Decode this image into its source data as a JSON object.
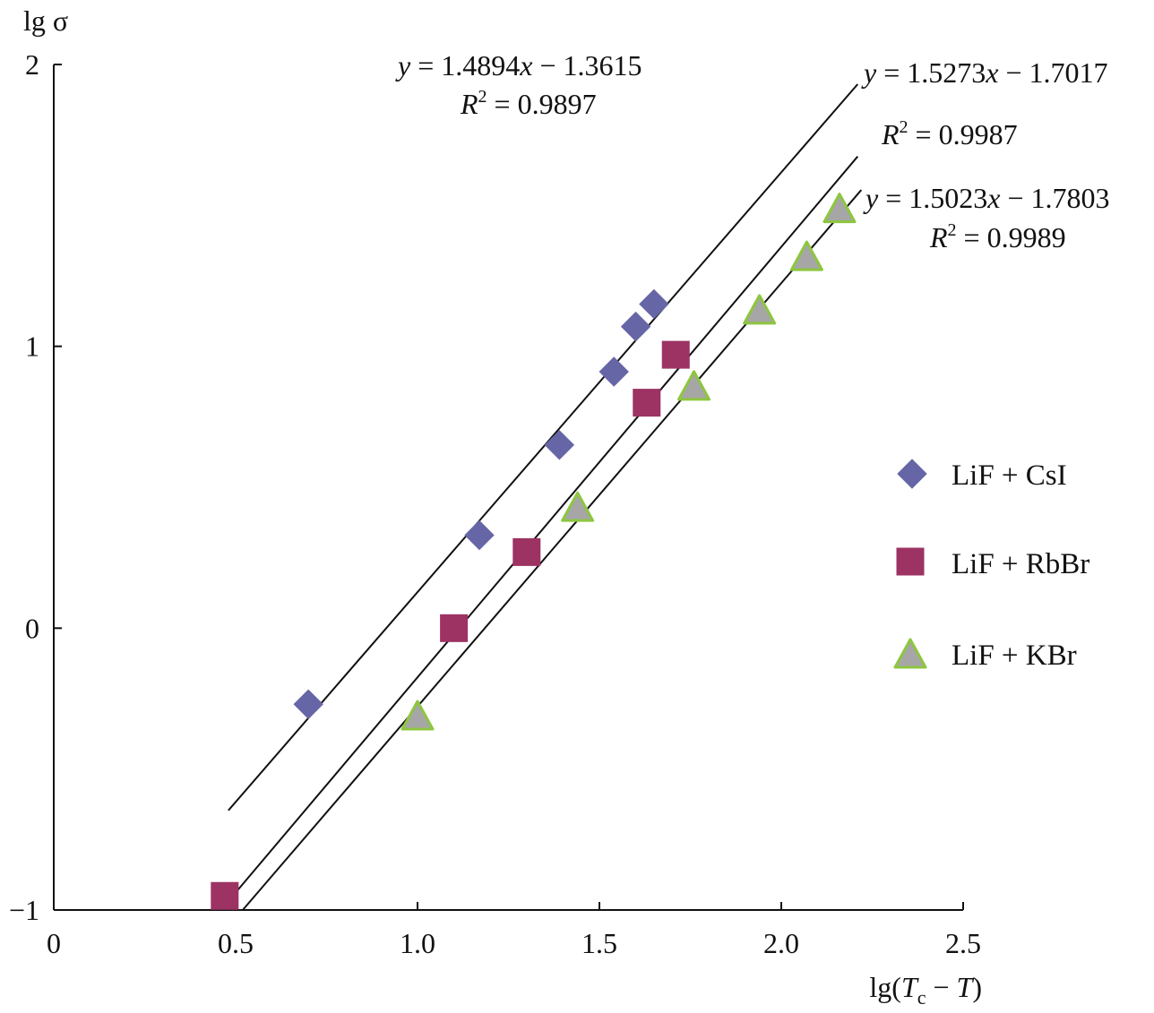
{
  "chart_data": {
    "type": "scatter",
    "xlabel": {
      "prefix": "lg(",
      "var1": "T",
      "sub1": "c",
      "mid": " − ",
      "var2": "T",
      "suffix": ")"
    },
    "ylabel": "lg σ",
    "xlim": [
      0,
      2.5
    ],
    "ylim": [
      -1,
      2
    ],
    "xticks": [
      {
        "value": 0,
        "label": "0"
      },
      {
        "value": 0.5,
        "label": "0.5"
      },
      {
        "value": 1.0,
        "label": "1.0"
      },
      {
        "value": 1.5,
        "label": "1.5"
      },
      {
        "value": 2.0,
        "label": "2.0"
      },
      {
        "value": 2.5,
        "label": "2.5"
      }
    ],
    "yticks": [
      {
        "value": -1,
        "label": "−1"
      },
      {
        "value": 0,
        "label": "0"
      },
      {
        "value": 1,
        "label": "1"
      },
      {
        "value": 2,
        "label": "2"
      }
    ],
    "legend_position": "right",
    "series": [
      {
        "name": "LiF + CsI",
        "marker": "diamond",
        "color": "#6666a6",
        "edge_color": "#6666a6",
        "points": [
          [
            0.7,
            -0.27
          ],
          [
            1.17,
            0.33
          ],
          [
            1.39,
            0.65
          ],
          [
            1.54,
            0.91
          ],
          [
            1.6,
            1.07
          ],
          [
            1.65,
            1.15
          ]
        ],
        "fit": {
          "slope": 1.4894,
          "intercept": -1.3615,
          "x_range": [
            0.48,
            2.21
          ]
        },
        "equation": {
          "lhs": "y",
          "rhs_a": " = 1.4894",
          "var": "x",
          "rhs_b": " − 1.3615",
          "r2_label": "R",
          "r2_sup": "2",
          "r2_value": " = 0.9897"
        }
      },
      {
        "name": "LiF + RbBr",
        "marker": "square",
        "color": "#9c3363",
        "edge_color": "#9c3363",
        "points": [
          [
            0.47,
            -0.95
          ],
          [
            1.1,
            0.0
          ],
          [
            1.3,
            0.27
          ],
          [
            1.63,
            0.8
          ],
          [
            1.71,
            0.97
          ]
        ],
        "fit": {
          "slope": 1.5273,
          "intercept": -1.7017,
          "x_range": [
            0.48,
            2.21
          ]
        },
        "equation": {
          "lhs": "y",
          "rhs_a": " = 1.5273",
          "var": "x",
          "rhs_b": " − 1.7017",
          "r2_label": "R",
          "r2_sup": "2",
          "r2_value": " = 0.9987"
        }
      },
      {
        "name": "LiF + KBr",
        "marker": "triangle",
        "color": "#a6a6a6",
        "edge_color": "#8dc63f",
        "points": [
          [
            1.0,
            -0.32
          ],
          [
            1.44,
            0.42
          ],
          [
            1.76,
            0.85
          ],
          [
            1.94,
            1.12
          ],
          [
            2.07,
            1.31
          ],
          [
            2.16,
            1.48
          ]
        ],
        "fit": {
          "slope": 1.5023,
          "intercept": -1.7803,
          "x_range": [
            0.52,
            2.22
          ]
        },
        "equation": {
          "lhs": "y",
          "rhs_a": " = 1.5023",
          "var": "x",
          "rhs_b": " − 1.7803",
          "r2_label": "R",
          "r2_sup": "2",
          "r2_value": " = 0.9989"
        }
      }
    ]
  }
}
